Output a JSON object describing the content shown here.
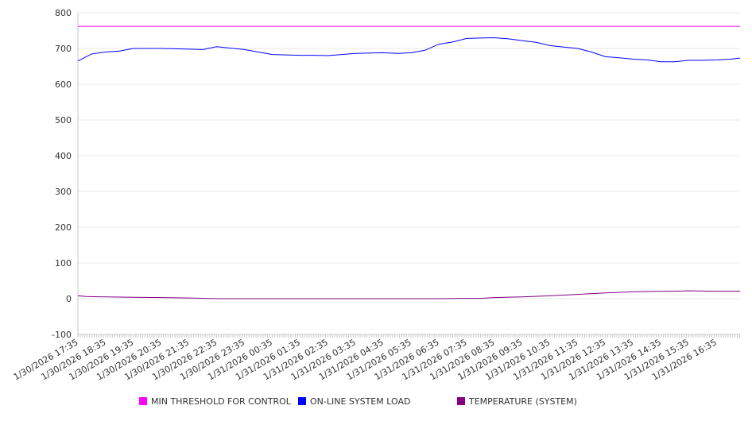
{
  "chart_data": {
    "type": "line",
    "title": "",
    "xlabel": "",
    "ylabel": "",
    "ylim": [
      -100,
      800
    ],
    "yticks": [
      800,
      700,
      600,
      500,
      400,
      300,
      200,
      100,
      0,
      -100
    ],
    "grid": true,
    "legend_position": "bottom",
    "x_labels": [
      "1/30/2026 17:35",
      "1/30/2026 18:35",
      "1/30/2026 19:35",
      "1/30/2026 20:35",
      "1/30/2026 21:35",
      "1/30/2026 22:35",
      "1/30/2026 23:35",
      "1/31/2026 00:35",
      "1/31/2026 01:35",
      "1/31/2026 02:35",
      "1/31/2026 03:35",
      "1/31/2026 04:35",
      "1/31/2026 05:35",
      "1/31/2026 06:35",
      "1/31/2026 07:35",
      "1/31/2026 08:35",
      "1/31/2026 09:35",
      "1/31/2026 10:35",
      "1/31/2026 11:35",
      "1/31/2026 12:35",
      "1/31/2026 13:35",
      "1/31/2026 14:35",
      "1/31/2026 15:35",
      "1/31/2026 16:35"
    ],
    "x_hours_span": 23.85,
    "series": [
      {
        "name": "MIN THRESHOLD FOR CONTROL",
        "color": "#ff00ff",
        "x": [
          0,
          23.85
        ],
        "values": [
          762,
          762
        ]
      },
      {
        "name": "ON-LINE SYSTEM LOAD",
        "color": "#0000ff",
        "x": [
          0,
          0.5,
          1,
          1.5,
          2,
          2.5,
          3,
          3.5,
          4,
          4.5,
          5,
          5.5,
          6,
          6.5,
          7,
          7.5,
          8,
          8.5,
          9,
          9.5,
          10,
          10.5,
          11,
          11.5,
          12,
          12.5,
          13,
          13.5,
          14,
          14.5,
          15,
          15.5,
          16,
          16.5,
          17,
          17.5,
          18,
          18.5,
          19,
          19.5,
          20,
          20.5,
          21,
          21.5,
          22,
          22.5,
          23,
          23.5,
          23.85
        ],
        "values": [
          665,
          685,
          690,
          693,
          700,
          700,
          700,
          699,
          698,
          697,
          705,
          701,
          697,
          690,
          683,
          682,
          681,
          681,
          680,
          683,
          686,
          687,
          688,
          686,
          688,
          695,
          712,
          718,
          728,
          729,
          730,
          727,
          722,
          717,
          708,
          704,
          700,
          690,
          677,
          674,
          670,
          668,
          663,
          663,
          667,
          667,
          668,
          670,
          673
        ]
      },
      {
        "name": "TEMPERATURE (SYSTEM)",
        "color": "#800080",
        "x": [
          0,
          0.3,
          1,
          2,
          3,
          4,
          5,
          6,
          8,
          10,
          12,
          13,
          14,
          14.5,
          15,
          16,
          17,
          18,
          19,
          20,
          21,
          21.5,
          22,
          23,
          23.85
        ],
        "values": [
          8,
          6,
          5,
          4,
          3,
          2,
          0,
          0,
          0,
          0,
          0,
          0,
          1,
          1,
          3,
          5,
          8,
          12,
          16,
          19,
          21,
          21,
          22,
          21,
          21
        ]
      }
    ]
  }
}
